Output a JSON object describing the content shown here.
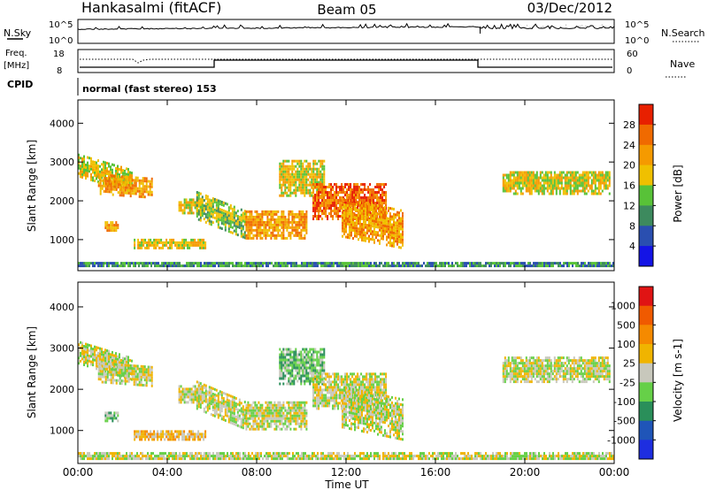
{
  "header": {
    "station": "Hankasalmi (fitACF)",
    "beam": "Beam 05",
    "date": "03/Dec/2012"
  },
  "side_labels": {
    "nsky": "N.Sky",
    "nsearch": "N.Search",
    "freq": "Freq.",
    "freq_unit": "[MHz]",
    "nave": "Nave",
    "cpid": "CPID"
  },
  "cpid_text": "normal (fast stereo) 153",
  "x_axis": {
    "label": "Time UT",
    "ticks": [
      "00:00",
      "04:00",
      "08:00",
      "12:00",
      "16:00",
      "20:00",
      "00:00"
    ],
    "range_hours": [
      0,
      24
    ]
  },
  "noise_panel": {
    "left_ticks": [
      "10^5",
      "10^0"
    ],
    "right_ticks": [
      "10^5",
      "10^0"
    ]
  },
  "freq_panel": {
    "left_ticks": [
      "18",
      "8"
    ],
    "right_ticks": [
      "60",
      "0"
    ]
  },
  "colors": {
    "power": [
      "#1414e6",
      "#2a4fb0",
      "#3d8a5e",
      "#58c238",
      "#f0c000",
      "#f59a00",
      "#f06a00",
      "#e82000"
    ],
    "velocity": [
      "#1e2ee0",
      "#1f55b8",
      "#2a8f5a",
      "#66d048",
      "#c8c8bc",
      "#f0b400",
      "#f58a00",
      "#f05a00",
      "#e01414"
    ]
  },
  "chart_data": [
    {
      "type": "heatmap",
      "name": "power",
      "ylabel": "Slant Range [km]",
      "yticks": [
        1000,
        2000,
        3000,
        4000
      ],
      "ylim": [
        200,
        4600
      ],
      "xlim": [
        0,
        24
      ],
      "colorbar": {
        "label": "Power [dB]",
        "ticks": [
          "4",
          "8",
          "12",
          "16",
          "20",
          "24",
          "28"
        ],
        "range": [
          0,
          30
        ]
      },
      "regions": [
        {
          "t0": 0.0,
          "t1": 2.4,
          "r0": 2600,
          "r1": 3150,
          "slope": -400,
          "level": 4
        },
        {
          "t0": 0.9,
          "t1": 3.3,
          "r0": 2150,
          "r1": 2650,
          "slope": -100,
          "level": 5
        },
        {
          "t0": 1.2,
          "t1": 1.8,
          "r0": 1200,
          "r1": 1450,
          "slope": 0,
          "level": 5
        },
        {
          "t0": 2.5,
          "t1": 5.7,
          "r0": 750,
          "r1": 960,
          "slope": 0,
          "level": 4
        },
        {
          "t0": 4.5,
          "t1": 5.6,
          "r0": 1650,
          "r1": 2050,
          "slope": 0,
          "level": 4
        },
        {
          "t0": 5.3,
          "t1": 7.5,
          "r0": 1500,
          "r1": 2200,
          "slope": -500,
          "level": 3
        },
        {
          "t0": 7.5,
          "t1": 10.2,
          "r0": 1000,
          "r1": 1700,
          "slope": 0,
          "level": 5
        },
        {
          "t0": 9.0,
          "t1": 11.0,
          "r0": 2100,
          "r1": 3000,
          "slope": 0,
          "level": 4
        },
        {
          "t0": 10.5,
          "t1": 13.8,
          "r0": 1500,
          "r1": 2400,
          "slope": 0,
          "level": 6
        },
        {
          "t0": 11.8,
          "t1": 14.5,
          "r0": 1050,
          "r1": 2050,
          "slope": -300,
          "level": 5
        },
        {
          "t0": 19.0,
          "t1": 23.8,
          "r0": 2150,
          "r1": 2750,
          "slope": 0,
          "level": 4
        },
        {
          "t0": 0.0,
          "t1": 24.0,
          "r0": 220,
          "r1": 420,
          "slope": 0,
          "level": 2
        }
      ]
    },
    {
      "type": "heatmap",
      "name": "velocity",
      "ylabel": "Slant Range [km]",
      "yticks": [
        1000,
        2000,
        3000,
        4000
      ],
      "ylim": [
        200,
        4600
      ],
      "xlim": [
        0,
        24
      ],
      "colorbar": {
        "label": "Velocity [m s-1]",
        "ticks": [
          "1000",
          "500",
          "100",
          "25",
          "-25",
          "-100",
          "-500",
          "-1000"
        ],
        "range": [
          -1200,
          1200
        ]
      },
      "regions": [
        {
          "t0": 0.0,
          "t1": 2.4,
          "r0": 2600,
          "r1": 3150,
          "slope": -400,
          "level": 4
        },
        {
          "t0": 0.9,
          "t1": 3.3,
          "r0": 2150,
          "r1": 2650,
          "slope": -100,
          "level": 4
        },
        {
          "t0": 1.2,
          "t1": 1.8,
          "r0": 1200,
          "r1": 1450,
          "slope": 0,
          "level": 3
        },
        {
          "t0": 2.5,
          "t1": 5.7,
          "r0": 750,
          "r1": 960,
          "slope": 0,
          "level": 5
        },
        {
          "t0": 4.5,
          "t1": 5.6,
          "r0": 1650,
          "r1": 2050,
          "slope": 0,
          "level": 4
        },
        {
          "t0": 5.3,
          "t1": 7.5,
          "r0": 1500,
          "r1": 2200,
          "slope": -500,
          "level": 4
        },
        {
          "t0": 7.5,
          "t1": 10.2,
          "r0": 1000,
          "r1": 1700,
          "slope": 0,
          "level": 4
        },
        {
          "t0": 9.0,
          "t1": 11.0,
          "r0": 2100,
          "r1": 3000,
          "slope": 0,
          "level": 3
        },
        {
          "t0": 10.5,
          "t1": 13.8,
          "r0": 1500,
          "r1": 2400,
          "slope": 0,
          "level": 4
        },
        {
          "t0": 11.8,
          "t1": 14.5,
          "r0": 1050,
          "r1": 2050,
          "slope": -300,
          "level": 4
        },
        {
          "t0": 19.0,
          "t1": 23.8,
          "r0": 2150,
          "r1": 2750,
          "slope": 0,
          "level": 4
        },
        {
          "t0": 0.0,
          "t1": 24.0,
          "r0": 220,
          "r1": 420,
          "slope": 0,
          "level": 4
        }
      ]
    }
  ]
}
